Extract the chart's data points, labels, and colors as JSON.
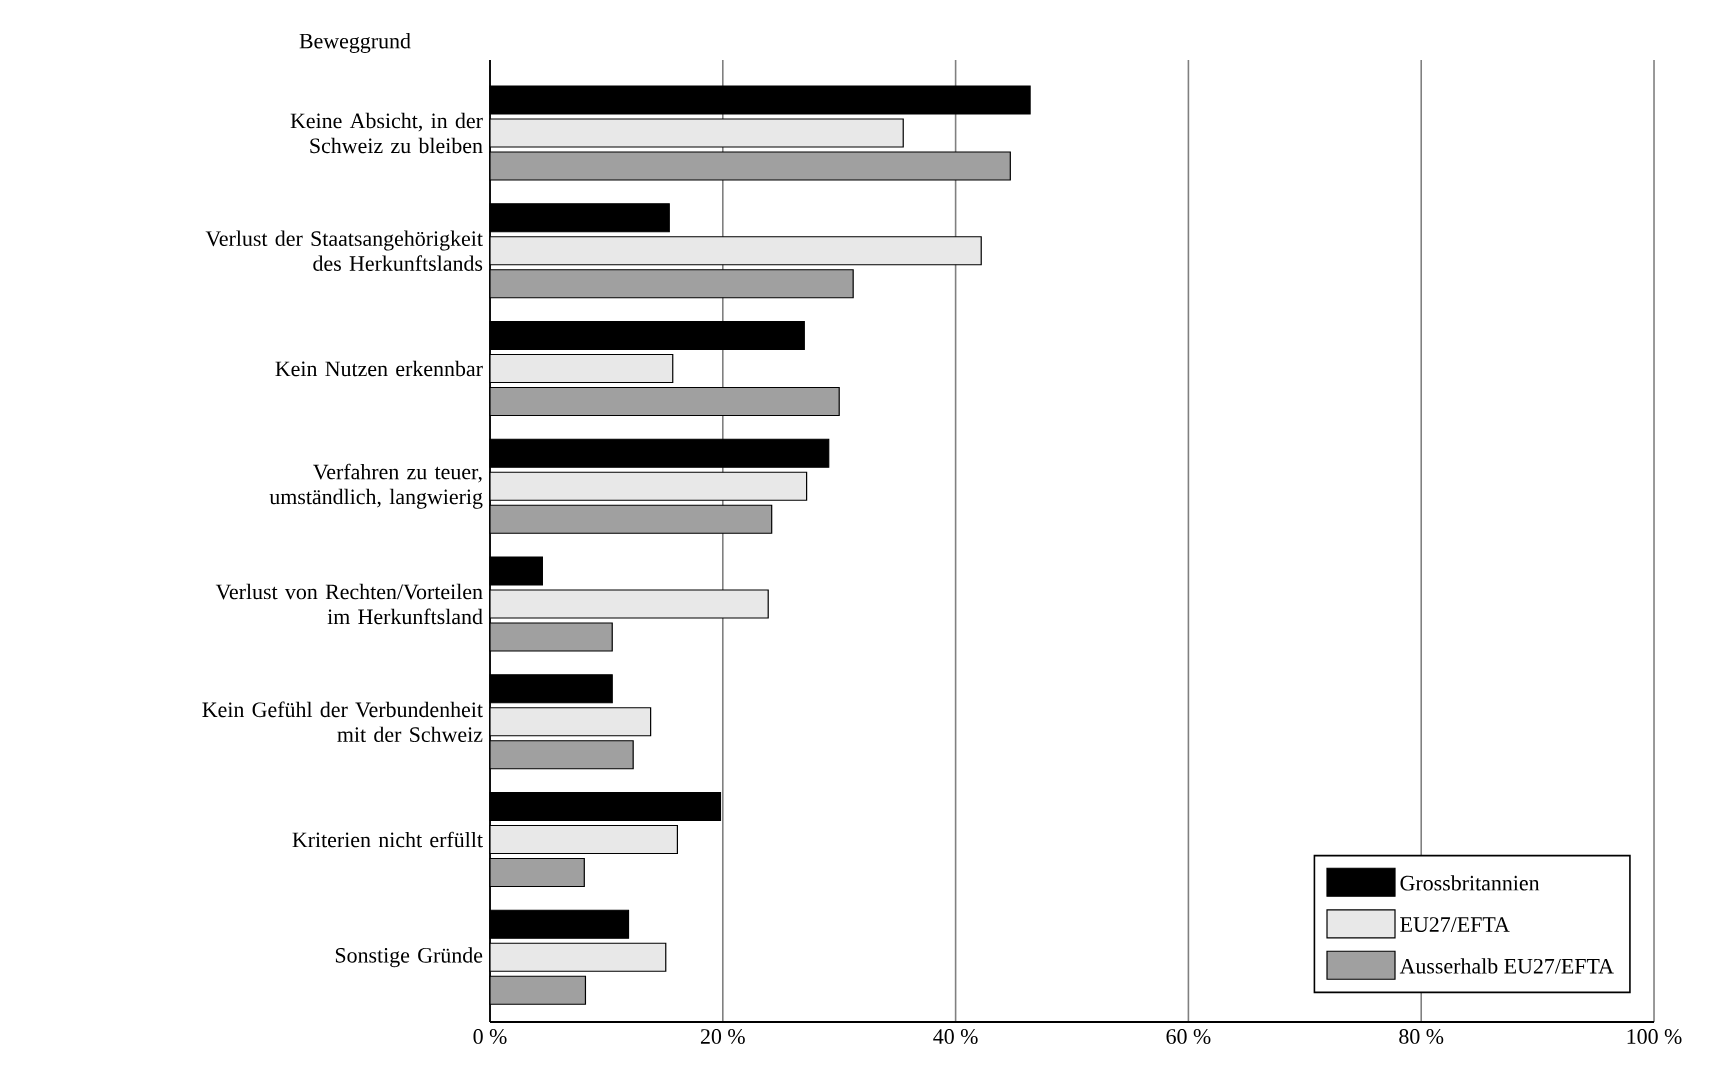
{
  "chart_data": {
    "type": "bar",
    "orientation": "horizontal",
    "ylabel": "Beweggrund",
    "categories": [
      "Keine Absicht, in der Schweiz zu bleiben",
      "Verlust der Staatsangehörigkeit des Herkunftslands",
      "Kein Nutzen erkennbar",
      "Verfahren zu teuer, umständlich, langwierig",
      "Verlust von Rechten/Vorteilen im Herkunftsland",
      "Kein Gefühl der Verbundenheit mit der Schweiz",
      "Kriterien nicht erfüllt",
      "Sonstige Gründe"
    ],
    "series": [
      {
        "name": "Grossbritannien",
        "color": "#000000",
        "values": [
          46.4,
          15.4,
          27.0,
          29.1,
          4.5,
          10.5,
          19.8,
          11.9
        ]
      },
      {
        "name": "EU27/EFTA",
        "color": "#e8e8e8",
        "values": [
          35.5,
          42.2,
          15.7,
          27.2,
          23.9,
          13.8,
          16.1,
          15.1
        ]
      },
      {
        "name": "Ausserhalb EU27/EFTA",
        "color": "#a0a0a0",
        "values": [
          44.7,
          31.2,
          30.0,
          24.2,
          10.5,
          12.3,
          8.1,
          8.2
        ]
      }
    ],
    "xlim": [
      0,
      100
    ],
    "xticks": [
      {
        "value": 0,
        "label": "0 %"
      },
      {
        "value": 20,
        "label": "20 %"
      },
      {
        "value": 40,
        "label": "40 %"
      },
      {
        "value": 60,
        "label": "60 %"
      },
      {
        "value": 80,
        "label": "80 %"
      },
      {
        "value": 100,
        "label": "100 %"
      }
    ],
    "grid": "x",
    "legend": "bottom right"
  }
}
